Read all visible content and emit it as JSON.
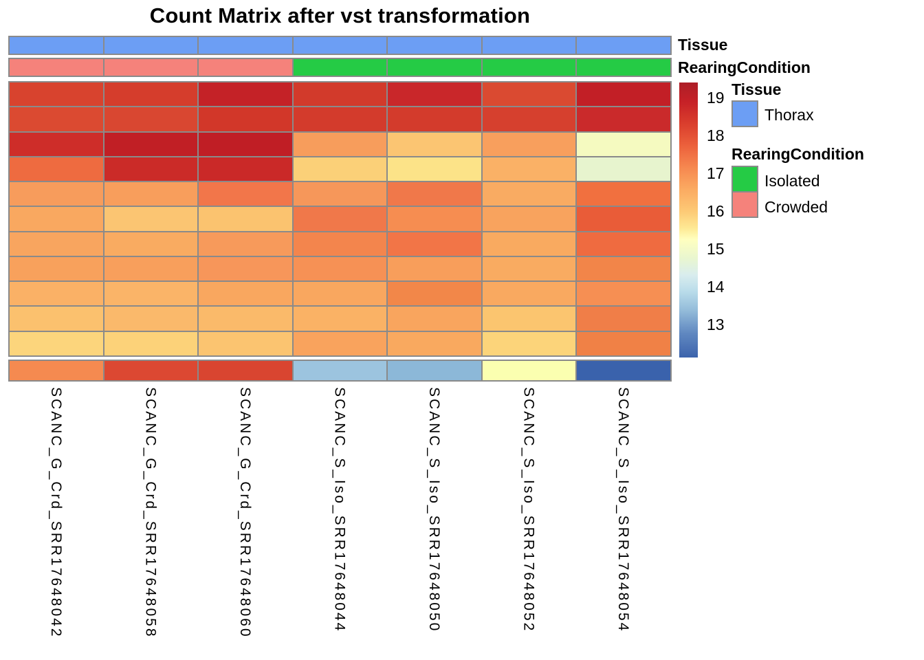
{
  "title": "Count Matrix after vst transformation",
  "annotation_bars": {
    "tissue": {
      "label": "Tissue",
      "values": [
        "Thorax",
        "Thorax",
        "Thorax",
        "Thorax",
        "Thorax",
        "Thorax",
        "Thorax"
      ]
    },
    "rearing": {
      "label": "RearingCondition",
      "values": [
        "Crowded",
        "Crowded",
        "Crowded",
        "Isolated",
        "Isolated",
        "Isolated",
        "Isolated"
      ]
    }
  },
  "annotation_colors": {
    "Thorax": "#6C9EF4",
    "Isolated": "#25CB45",
    "Crowded": "#F5827B"
  },
  "legend": {
    "tissue_header": "Tissue",
    "tissue_items": [
      {
        "label": "Thorax",
        "color": "#6C9EF4"
      }
    ],
    "rearing_header": "RearingCondition",
    "rearing_items": [
      {
        "label": "Isolated",
        "color": "#25CB45"
      },
      {
        "label": "Crowded",
        "color": "#F5827B"
      }
    ]
  },
  "colorbar": {
    "ticks": [
      "19",
      "18",
      "17",
      "16",
      "15",
      "14",
      "13"
    ]
  },
  "chart_data": {
    "type": "heatmap",
    "title": "Count Matrix after vst transformation",
    "columns": [
      "SCANC_G_Crd_SRR17648042",
      "SCANC_G_Crd_SRR17648058",
      "SCANC_G_Crd_SRR17648060",
      "SCANC_S_Iso_SRR17648044",
      "SCANC_S_Iso_SRR17648050",
      "SCANC_S_Iso_SRR17648052",
      "SCANC_S_Iso_SRR17648054"
    ],
    "n_rows": 12,
    "row_labels_shown": false,
    "gap_before_last_row": true,
    "column_annotations": {
      "Tissue": [
        "Thorax",
        "Thorax",
        "Thorax",
        "Thorax",
        "Thorax",
        "Thorax",
        "Thorax"
      ],
      "RearingCondition": [
        "Crowded",
        "Crowded",
        "Crowded",
        "Isolated",
        "Isolated",
        "Isolated",
        "Isolated"
      ]
    },
    "colorbar_ticks": [
      19,
      18,
      17,
      16,
      15,
      14,
      13
    ],
    "colorbar_range_approx": [
      12.6,
      19.4
    ],
    "legend_position": "right",
    "grid_line_color": "#8a8a8a",
    "cell_colors": [
      [
        "#D8432E",
        "#D53D2C",
        "#C42227",
        "#D23A2B",
        "#C9272A",
        "#DA4A31",
        "#C21F26"
      ],
      [
        "#DB4A31",
        "#D94731",
        "#D23729",
        "#D33B2C",
        "#D33B2C",
        "#D6402E",
        "#CA2A2B"
      ],
      [
        "#CE2D29",
        "#C11F25",
        "#C01E25",
        "#F79D5C",
        "#FBC572",
        "#F89F5D",
        "#F5FAC0"
      ],
      [
        "#EE6B40",
        "#CB2B28",
        "#CA2928",
        "#FBD078",
        "#FCE388",
        "#FAB166",
        "#E7F4CE"
      ],
      [
        "#F79C5C",
        "#F89E5C",
        "#F2764A",
        "#F6975A",
        "#F0784A",
        "#F9AB62",
        "#F1703F"
      ],
      [
        "#F9A860",
        "#FBC572",
        "#FBC36F",
        "#F0784A",
        "#F68D51",
        "#F8A35E",
        "#E95C38"
      ],
      [
        "#F8A55F",
        "#F9AB61",
        "#F79A5B",
        "#F3854D",
        "#F27547",
        "#F9AA60",
        "#EF6B40"
      ],
      [
        "#F8A15C",
        "#F89F5C",
        "#F7965A",
        "#F69155",
        "#F89E5B",
        "#F9AB61",
        "#F28549"
      ],
      [
        "#FAB166",
        "#FAB468",
        "#F9A75F",
        "#F9A75F",
        "#F28749",
        "#F9A960",
        "#F68F53"
      ],
      [
        "#FBC16E",
        "#FAB96B",
        "#FABA6A",
        "#FAB265",
        "#F9A55E",
        "#FBC56F",
        "#F07E48"
      ],
      [
        "#FCD57C",
        "#FCD279",
        "#FBC470",
        "#F9A35D",
        "#F9A95F",
        "#FCD47A",
        "#F08146"
      ],
      [
        "#F58A50",
        "#DC4832",
        "#D94530",
        "#9CC4DF",
        "#8CB8D8",
        "#FBFFB0",
        "#3A62AC"
      ]
    ],
    "values_estimated": [
      [
        18.6,
        18.7,
        19.1,
        18.8,
        19.0,
        18.6,
        19.1
      ],
      [
        18.5,
        18.6,
        18.8,
        18.8,
        18.8,
        18.7,
        18.9
      ],
      [
        18.9,
        19.1,
        19.1,
        17.4,
        16.9,
        17.4,
        15.6
      ],
      [
        18.2,
        18.9,
        18.9,
        16.6,
        16.4,
        17.1,
        15.2
      ],
      [
        17.4,
        17.4,
        17.9,
        17.5,
        17.9,
        17.2,
        18.1
      ],
      [
        17.2,
        16.9,
        16.9,
        17.9,
        17.6,
        17.3,
        18.3
      ],
      [
        17.3,
        17.2,
        17.4,
        17.8,
        17.9,
        17.3,
        18.1
      ],
      [
        17.4,
        17.4,
        17.5,
        17.6,
        17.4,
        17.2,
        17.7
      ],
      [
        17.1,
        17.1,
        17.3,
        17.3,
        17.7,
        17.3,
        17.6
      ],
      [
        16.9,
        17.0,
        17.0,
        17.1,
        17.3,
        16.9,
        17.9
      ],
      [
        16.7,
        16.7,
        16.9,
        17.3,
        17.2,
        16.7,
        17.8
      ],
      [
        17.6,
        18.6,
        18.6,
        14.0,
        13.8,
        15.6,
        12.7
      ]
    ]
  }
}
